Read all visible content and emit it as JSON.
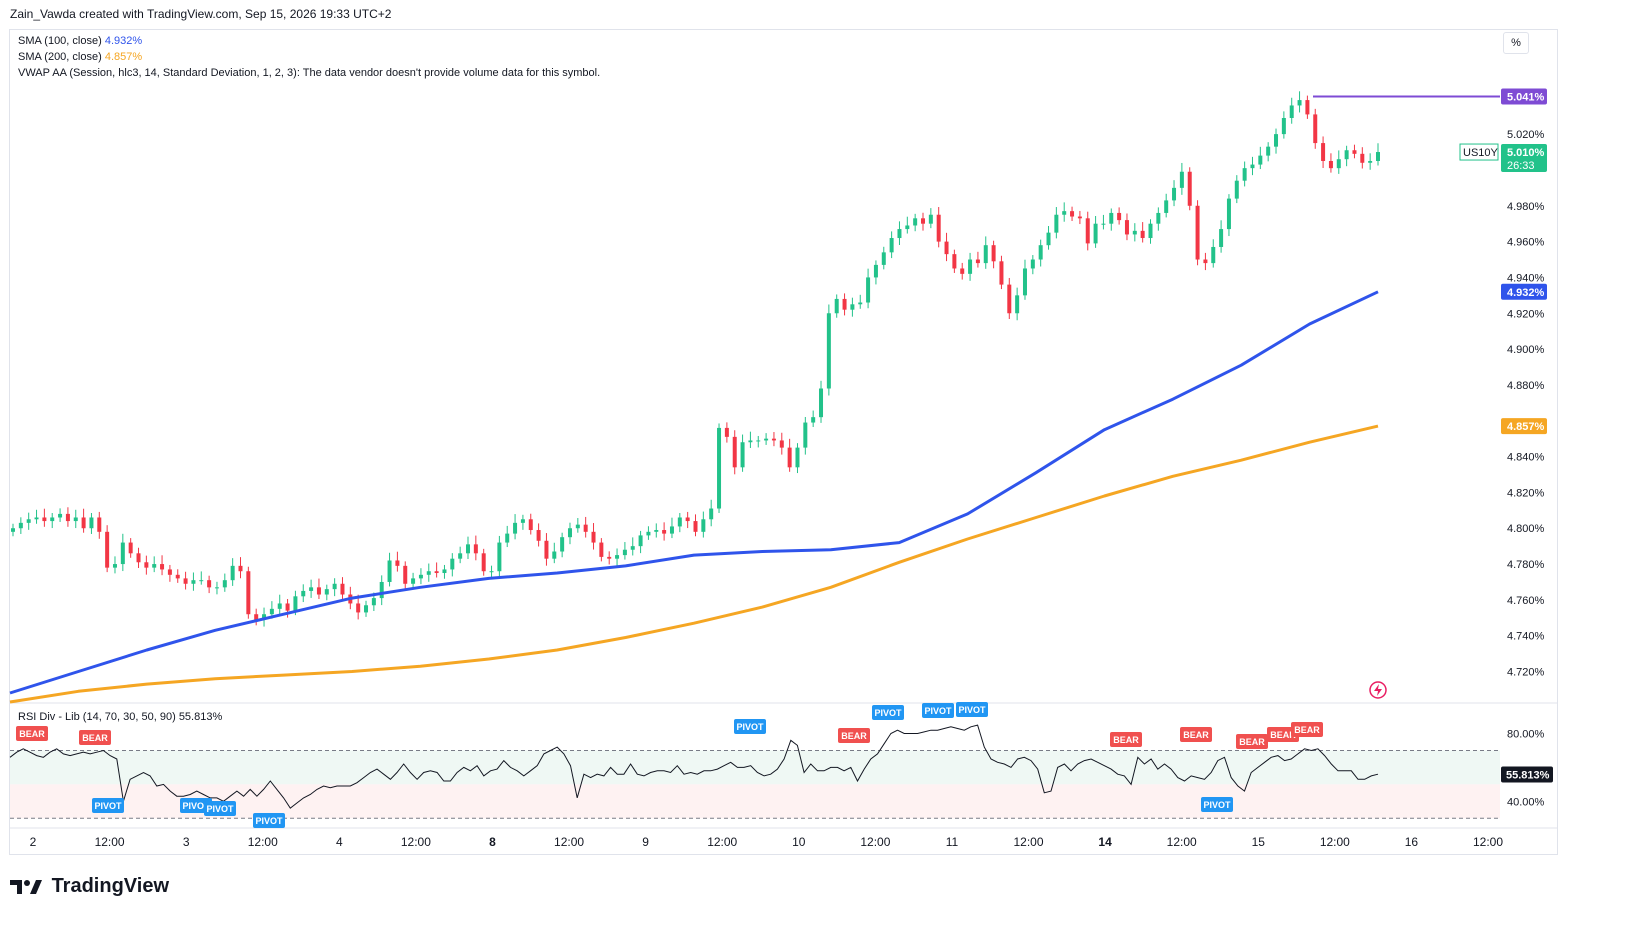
{
  "header": {
    "caption": "Zain_Vawda created with TradingView.com, Sep 15, 2026 19:33 UTC+2"
  },
  "legend": {
    "sma100_label": "SMA (100, close)",
    "sma100_value": "4.932%",
    "sma200_label": "SMA (200, close)",
    "sma200_value": "4.857%",
    "vwap_text": "VWAP AA (Session, hlc3, 14, Standard Deviation, 1, 2, 3): The data vendor doesn't provide volume data for this symbol.",
    "rsi_label": "RSI Div - Lib (14, 70, 30, 50, 90)",
    "rsi_value": "55.813%"
  },
  "scale_button": "%",
  "footer": {
    "brand": "TradingView"
  },
  "colors": {
    "up": "#26a69a",
    "up_fill": "#22c28a",
    "down": "#f23645",
    "sma100": "#2f54eb",
    "sma200": "#f5a623",
    "rsi": "#131722",
    "pivot": "#2196f3",
    "bear": "#f0504f",
    "hline": "#7e4bd4"
  },
  "chart_data": [
    {
      "type": "candlestick",
      "symbol": "US10Y",
      "last_price": "5.010%",
      "countdown": "26:33",
      "hline_level": "5.041%",
      "y_ticks": [
        "5.020%",
        "4.980%",
        "4.960%",
        "4.940%",
        "4.920%",
        "4.900%",
        "4.880%",
        "4.840%",
        "4.820%",
        "4.800%",
        "4.780%",
        "4.760%",
        "4.740%",
        "4.720%"
      ],
      "y_range": [
        4.703,
        5.053
      ],
      "x_ticks": [
        "2",
        "12:00",
        "3",
        "12:00",
        "4",
        "12:00",
        "8",
        "12:00",
        "9",
        "12:00",
        "10",
        "12:00",
        "11",
        "12:00",
        "14",
        "12:00",
        "15",
        "12:00",
        "16",
        "12:00"
      ],
      "x_ticks_bold": [
        "8",
        "14"
      ],
      "sma100_series": [
        [
          0,
          4.708
        ],
        [
          0.05,
          4.72
        ],
        [
          0.1,
          4.732
        ],
        [
          0.15,
          4.743
        ],
        [
          0.2,
          4.752
        ],
        [
          0.25,
          4.761
        ],
        [
          0.3,
          4.767
        ],
        [
          0.35,
          4.772
        ],
        [
          0.4,
          4.775
        ],
        [
          0.45,
          4.779
        ],
        [
          0.5,
          4.785
        ],
        [
          0.55,
          4.787
        ],
        [
          0.6,
          4.788
        ],
        [
          0.65,
          4.792
        ],
        [
          0.7,
          4.808
        ],
        [
          0.75,
          4.831
        ],
        [
          0.8,
          4.855
        ],
        [
          0.85,
          4.872
        ],
        [
          0.9,
          4.891
        ],
        [
          0.95,
          4.914
        ],
        [
          1.0,
          4.932
        ]
      ],
      "sma200_series": [
        [
          0,
          4.703
        ],
        [
          0.05,
          4.709
        ],
        [
          0.1,
          4.713
        ],
        [
          0.15,
          4.716
        ],
        [
          0.2,
          4.718
        ],
        [
          0.25,
          4.72
        ],
        [
          0.3,
          4.723
        ],
        [
          0.35,
          4.727
        ],
        [
          0.4,
          4.732
        ],
        [
          0.45,
          4.739
        ],
        [
          0.5,
          4.747
        ],
        [
          0.55,
          4.756
        ],
        [
          0.6,
          4.767
        ],
        [
          0.65,
          4.781
        ],
        [
          0.7,
          4.794
        ],
        [
          0.75,
          4.806
        ],
        [
          0.8,
          4.818
        ],
        [
          0.85,
          4.829
        ],
        [
          0.9,
          4.838
        ],
        [
          0.95,
          4.848
        ],
        [
          1.0,
          4.857
        ]
      ],
      "candles_close": [
        4.8,
        4.803,
        4.805,
        4.806,
        4.804,
        4.806,
        4.808,
        4.804,
        4.806,
        4.8,
        4.806,
        4.798,
        4.778,
        4.78,
        4.792,
        4.786,
        4.781,
        4.778,
        4.78,
        4.777,
        4.774,
        4.772,
        4.769,
        4.771,
        4.771,
        4.767,
        4.767,
        4.771,
        4.779,
        4.776,
        4.752,
        4.749,
        4.752,
        4.755,
        4.758,
        4.754,
        4.762,
        4.765,
        4.767,
        4.763,
        4.766,
        4.769,
        4.763,
        4.758,
        4.753,
        4.757,
        4.761,
        4.77,
        4.782,
        4.779,
        4.769,
        4.772,
        4.774,
        4.776,
        4.775,
        4.777,
        4.783,
        4.786,
        4.791,
        4.786,
        4.776,
        4.776,
        4.792,
        4.797,
        4.803,
        4.805,
        4.799,
        4.793,
        4.783,
        4.787,
        4.795,
        4.8,
        4.802,
        4.798,
        4.792,
        4.784,
        4.783,
        4.785,
        4.788,
        4.79,
        4.796,
        4.798,
        4.799,
        4.797,
        4.801,
        4.806,
        4.804,
        4.798,
        4.805,
        4.811,
        4.856,
        4.851,
        4.834,
        4.848,
        4.849,
        4.849,
        4.85,
        4.849,
        4.845,
        4.834,
        4.845,
        4.859,
        4.862,
        4.878,
        4.92,
        4.928,
        4.922,
        4.925,
        4.926,
        4.94,
        4.947,
        4.954,
        4.962,
        4.967,
        4.969,
        4.973,
        4.97,
        4.975,
        4.96,
        4.953,
        4.945,
        4.942,
        4.95,
        4.948,
        4.958,
        4.949,
        4.936,
        4.92,
        4.93,
        4.945,
        4.95,
        4.958,
        4.965,
        4.975,
        4.977,
        4.974,
        4.973,
        4.959,
        4.97,
        4.97,
        4.976,
        4.972,
        4.964,
        4.966,
        4.962,
        4.97,
        4.976,
        4.983,
        4.99,
        4.999,
        4.98,
        4.95,
        4.948,
        4.957,
        4.967,
        4.984,
        4.994,
        5.001,
        5.003,
        5.008,
        5.013,
        5.02,
        5.029,
        5.036,
        5.039,
        5.031,
        5.015,
        5.005,
        5.001,
        5.006,
        5.011,
        5.009,
        5.004,
        5.005,
        5.01
      ]
    },
    {
      "type": "line",
      "name": "RSI Div - Lib",
      "value": "55.813%",
      "y_ticks": [
        "80.00%",
        "40.00%"
      ],
      "bands": {
        "upper": 70,
        "mid": 50,
        "lower": 30
      },
      "y_range": [
        26,
        88
      ],
      "series": [
        66,
        69,
        71,
        69,
        67,
        66,
        69,
        71,
        68,
        67,
        68,
        69,
        68,
        69,
        70,
        67,
        65,
        40,
        53,
        55,
        57,
        55,
        49,
        50,
        46,
        43,
        43,
        44,
        46,
        44,
        42,
        42,
        40,
        43,
        46,
        43,
        47,
        43,
        47,
        52,
        47,
        42,
        36,
        39,
        42,
        44,
        47,
        49,
        48,
        49,
        49,
        49,
        51,
        54,
        57,
        59,
        56,
        53,
        57,
        62,
        57,
        53,
        57,
        58,
        57,
        52,
        52,
        57,
        60,
        58,
        61,
        55,
        58,
        59,
        64,
        60,
        58,
        55,
        58,
        61,
        68,
        70,
        72,
        68,
        61,
        42,
        56,
        54,
        56,
        55,
        60,
        56,
        56,
        62,
        56,
        55,
        57,
        58,
        58,
        57,
        61,
        56,
        57,
        56,
        58,
        58,
        59,
        61,
        63,
        60,
        60,
        61,
        57,
        55,
        56,
        59,
        65,
        76,
        73,
        57,
        62,
        58,
        58,
        60,
        60,
        58,
        60,
        52,
        59,
        65,
        68,
        74,
        80,
        82,
        80,
        80,
        80,
        81,
        82,
        82,
        83,
        84,
        83,
        82,
        84,
        85,
        72,
        65,
        63,
        62,
        60,
        65,
        66,
        64,
        59,
        45,
        46,
        60,
        62,
        58,
        62,
        64,
        65,
        63,
        61,
        59,
        56,
        55,
        50,
        66,
        62,
        65,
        59,
        62,
        59,
        54,
        52,
        55,
        54,
        53,
        57,
        64,
        66,
        54,
        49,
        46,
        57,
        60,
        63,
        66,
        67,
        64,
        65,
        68,
        71,
        70,
        71,
        67,
        62,
        58,
        58,
        58,
        53,
        53,
        55,
        56
      ]
    }
  ],
  "markers": {
    "pivot": "PIVOT",
    "bear": "BEAR"
  }
}
